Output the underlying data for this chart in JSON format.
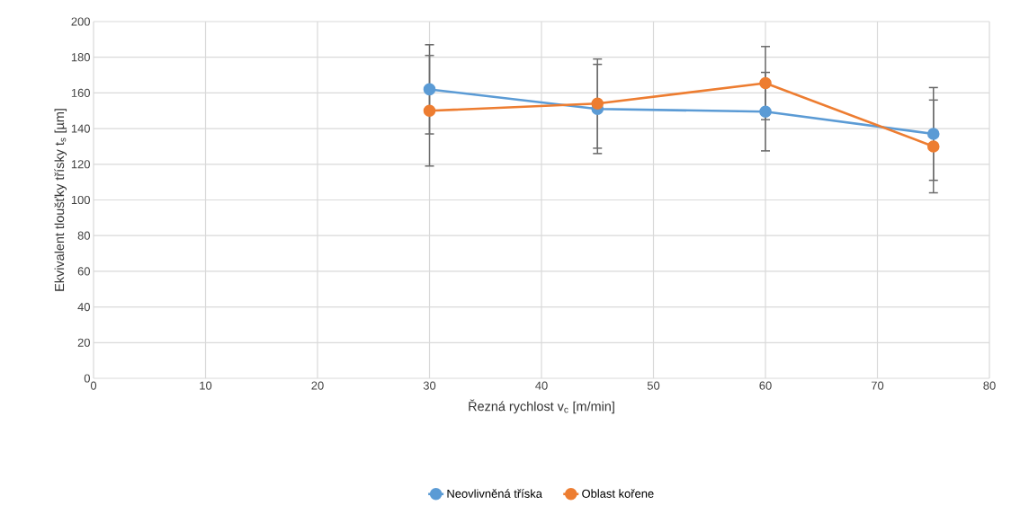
{
  "chart_data": {
    "type": "line",
    "xlabel": "Řezná rychlost v$_{c}$ [m/min]",
    "ylabel": "Ekvivalent tloušťky třísky t$_{s}$ [µm]",
    "x": [
      30,
      45,
      60,
      75
    ],
    "series": [
      {
        "name": "Neovlivněná tříska",
        "color": "#5b9bd5",
        "values": [
          162,
          151,
          149.5,
          137
        ],
        "errors": [
          25,
          25,
          22,
          26
        ]
      },
      {
        "name": "Oblast kořene",
        "color": "#ed7d31",
        "values": [
          150,
          154,
          165.5,
          130
        ],
        "errors": [
          31,
          25,
          20.5,
          26
        ]
      }
    ],
    "xlim": [
      0,
      80
    ],
    "xticks": [
      0,
      10,
      20,
      30,
      40,
      50,
      60,
      70,
      80
    ],
    "ylim": [
      0,
      200
    ],
    "yticks": [
      0,
      20,
      40,
      60,
      80,
      100,
      120,
      140,
      160,
      180,
      200
    ],
    "grid": true,
    "legend": "bottom",
    "marker": "circle",
    "line_style": "solid"
  }
}
